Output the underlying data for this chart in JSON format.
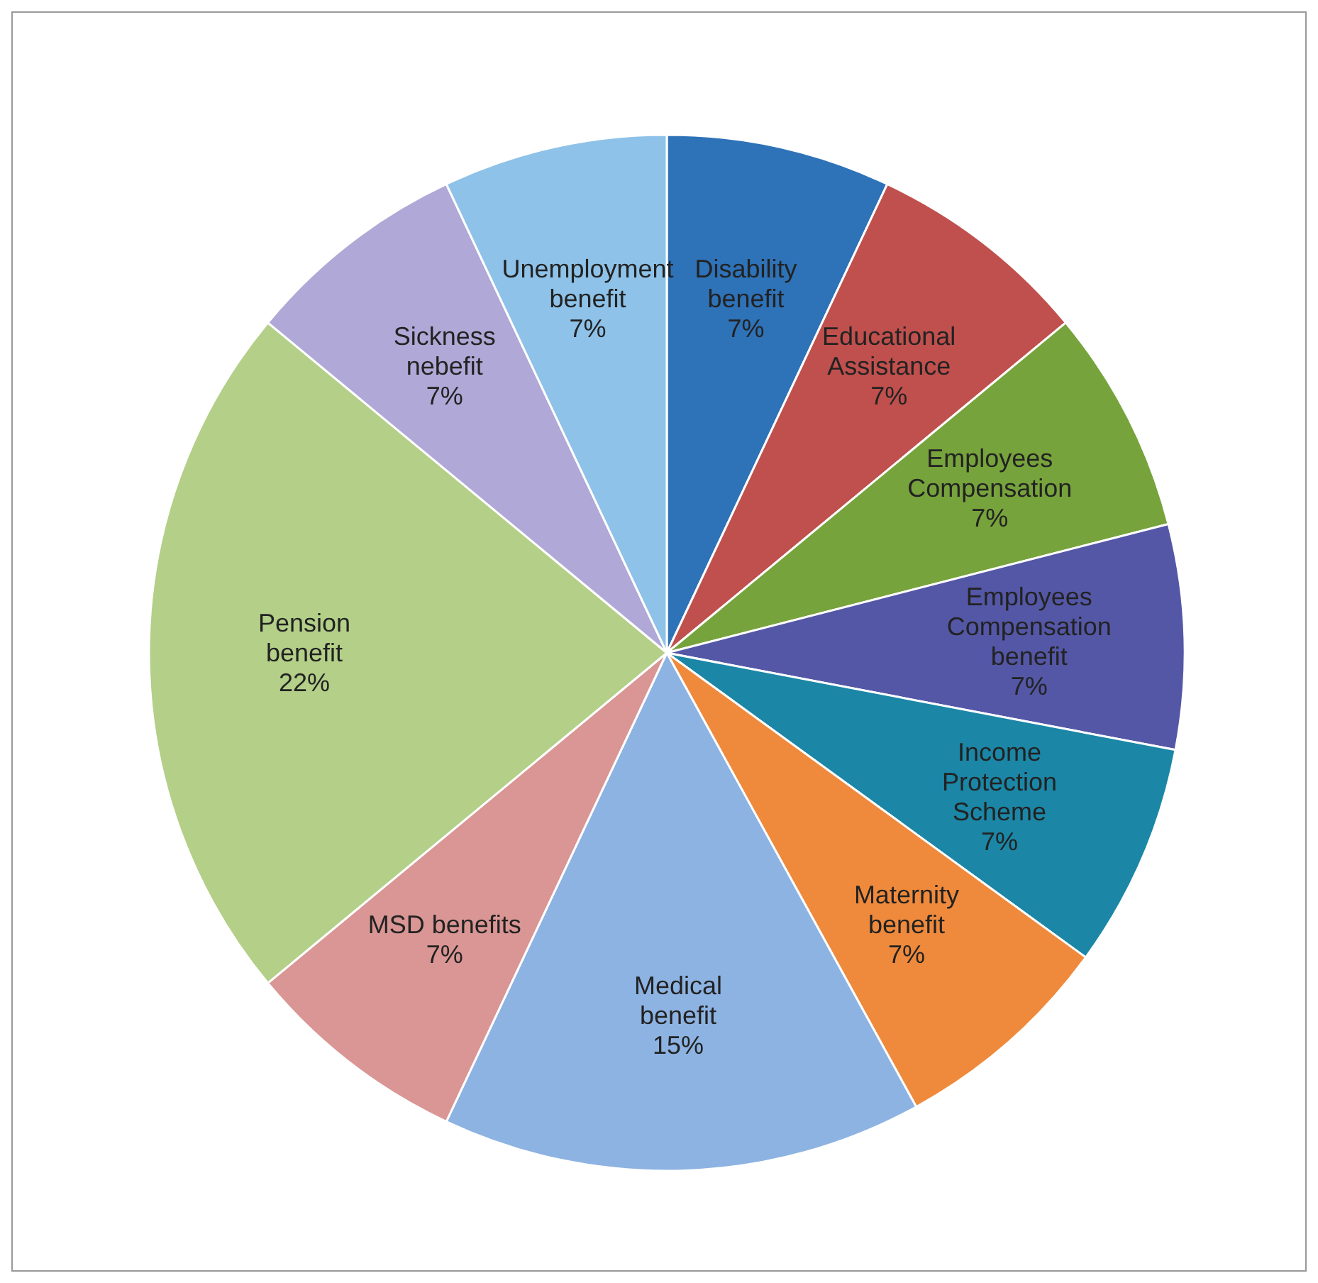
{
  "chart_data": {
    "type": "pie",
    "categories": [
      "Disability benefit",
      "Educational Assistance",
      "Employees Compensation",
      "Employees Compensation benefit",
      "Income Protection Scheme",
      "Maternity benefit",
      "Medical benefit",
      "MSD benefits",
      "Pension benefit",
      "Sickness nebefit",
      "Unemployment benefit"
    ],
    "values": [
      7,
      7,
      7,
      7,
      7,
      7,
      15,
      7,
      22,
      7,
      7
    ],
    "value_labels": [
      "7%",
      "7%",
      "7%",
      "7%",
      "7%",
      "7%",
      "15%",
      "7%",
      "22%",
      "7%",
      "7%"
    ],
    "colors": [
      "#2e72b8",
      "#c0504d",
      "#77a33c",
      "#5457a6",
      "#1b86a6",
      "#ef8a3c",
      "#8db3e2",
      "#d99694",
      "#b3cf88",
      "#b0a8d6",
      "#8ec2e8"
    ],
    "legend": false
  }
}
